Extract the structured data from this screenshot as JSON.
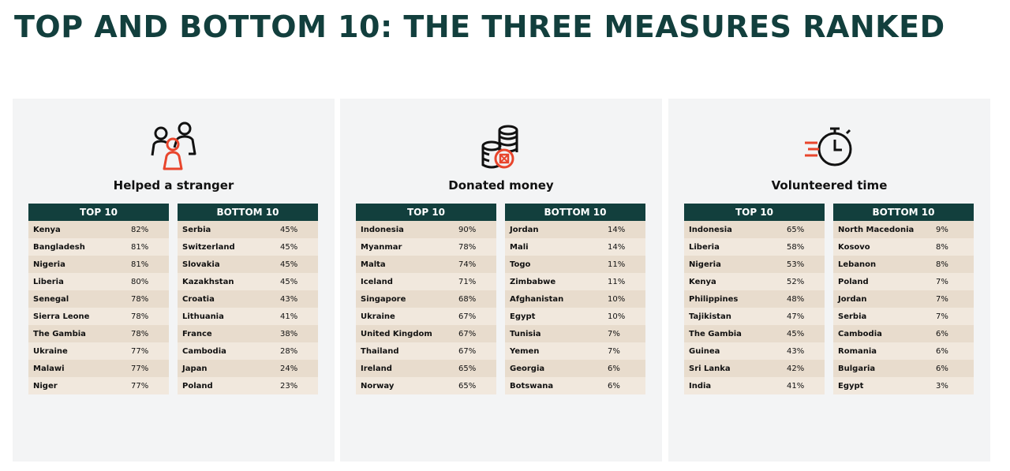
{
  "page": {
    "title": "TOP AND BOTTOM 10: THE THREE MEASURES RANKED"
  },
  "colors": {
    "header": "#123f3d",
    "accent": "#e8452c",
    "row_odd": "#e8dccd",
    "row_even": "#f1e8dd",
    "panel": "#f3f4f5"
  },
  "panels": [
    {
      "title": "Helped a stranger",
      "icon": "people-icon",
      "top": {
        "header": "TOP 10",
        "rows": [
          {
            "country": "Kenya",
            "value": "82%"
          },
          {
            "country": "Bangladesh",
            "value": "81%"
          },
          {
            "country": "Nigeria",
            "value": "81%"
          },
          {
            "country": "Liberia",
            "value": "80%"
          },
          {
            "country": "Senegal",
            "value": "78%"
          },
          {
            "country": "Sierra Leone",
            "value": "78%"
          },
          {
            "country": "The Gambia",
            "value": "78%"
          },
          {
            "country": "Ukraine",
            "value": "77%"
          },
          {
            "country": "Malawi",
            "value": "77%"
          },
          {
            "country": "Niger",
            "value": "77%"
          }
        ]
      },
      "bottom": {
        "header": "BOTTOM 10",
        "rows": [
          {
            "country": "Serbia",
            "value": "45%"
          },
          {
            "country": "Switzerland",
            "value": "45%"
          },
          {
            "country": "Slovakia",
            "value": "45%"
          },
          {
            "country": "Kazakhstan",
            "value": "45%"
          },
          {
            "country": "Croatia",
            "value": "43%"
          },
          {
            "country": "Lithuania",
            "value": "41%"
          },
          {
            "country": "France",
            "value": "38%"
          },
          {
            "country": "Cambodia",
            "value": "28%"
          },
          {
            "country": "Japan",
            "value": "24%"
          },
          {
            "country": "Poland",
            "value": "23%"
          }
        ]
      }
    },
    {
      "title": "Donated money",
      "icon": "coins-icon",
      "top": {
        "header": "TOP 10",
        "rows": [
          {
            "country": "Indonesia",
            "value": "90%"
          },
          {
            "country": "Myanmar",
            "value": "78%"
          },
          {
            "country": "Malta",
            "value": "74%"
          },
          {
            "country": "Iceland",
            "value": "71%"
          },
          {
            "country": "Singapore",
            "value": "68%"
          },
          {
            "country": "Ukraine",
            "value": "67%"
          },
          {
            "country": "United Kingdom",
            "value": "67%"
          },
          {
            "country": "Thailand",
            "value": "67%"
          },
          {
            "country": "Ireland",
            "value": "65%"
          },
          {
            "country": "Norway",
            "value": "65%"
          }
        ]
      },
      "bottom": {
        "header": "BOTTOM 10",
        "rows": [
          {
            "country": "Jordan",
            "value": "14%"
          },
          {
            "country": "Mali",
            "value": "14%"
          },
          {
            "country": "Togo",
            "value": "11%"
          },
          {
            "country": "Zimbabwe",
            "value": "11%"
          },
          {
            "country": "Afghanistan",
            "value": "10%"
          },
          {
            "country": "Egypt",
            "value": "10%"
          },
          {
            "country": "Tunisia",
            "value": "7%"
          },
          {
            "country": "Yemen",
            "value": "7%"
          },
          {
            "country": "Georgia",
            "value": "6%"
          },
          {
            "country": "Botswana",
            "value": "6%"
          }
        ]
      }
    },
    {
      "title": "Volunteered time",
      "icon": "stopwatch-icon",
      "top": {
        "header": "TOP 10",
        "rows": [
          {
            "country": "Indonesia",
            "value": "65%"
          },
          {
            "country": "Liberia",
            "value": "58%"
          },
          {
            "country": "Nigeria",
            "value": "53%"
          },
          {
            "country": "Kenya",
            "value": "52%"
          },
          {
            "country": "Philippines",
            "value": "48%"
          },
          {
            "country": "Tajikistan",
            "value": "47%"
          },
          {
            "country": "The Gambia",
            "value": "45%"
          },
          {
            "country": "Guinea",
            "value": "43%"
          },
          {
            "country": "Sri Lanka",
            "value": "42%"
          },
          {
            "country": "India",
            "value": "41%"
          }
        ]
      },
      "bottom": {
        "header": "BOTTOM 10",
        "rows": [
          {
            "country": "North Macedonia",
            "value": "9%"
          },
          {
            "country": "Kosovo",
            "value": "8%"
          },
          {
            "country": "Lebanon",
            "value": "8%"
          },
          {
            "country": "Poland",
            "value": "7%"
          },
          {
            "country": "Jordan",
            "value": "7%"
          },
          {
            "country": "Serbia",
            "value": "7%"
          },
          {
            "country": "Cambodia",
            "value": "6%"
          },
          {
            "country": "Romania",
            "value": "6%"
          },
          {
            "country": "Bulgaria",
            "value": "6%"
          },
          {
            "country": "Egypt",
            "value": "3%"
          }
        ]
      }
    }
  ]
}
